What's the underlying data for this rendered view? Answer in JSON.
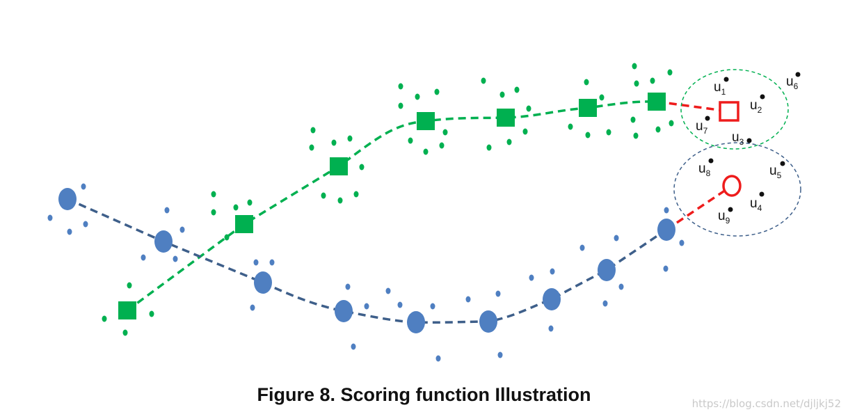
{
  "caption": "Figure 8. Scoring function Illustration",
  "watermark": "https://blog.csdn.net/djljkj52",
  "colors": {
    "green": "#00b050",
    "blue": "#4f7fc1",
    "blue_line": "#3e5f8a",
    "red": "#ee1c1c",
    "text": "#111111"
  },
  "green_trajectory": {
    "marker": "square",
    "line_style": "dashed",
    "candidate_marker": "hollow-square"
  },
  "blue_trajectory": {
    "marker": "circle",
    "line_style": "dashed",
    "candidate_marker": "hollow-circle"
  },
  "candidate_link": {
    "line_style": "dashed"
  },
  "users": [
    {
      "base": "u",
      "sub": "1"
    },
    {
      "base": "u",
      "sub": "2"
    },
    {
      "base": "u",
      "sub": "3"
    },
    {
      "base": "u",
      "sub": "4"
    },
    {
      "base": "u",
      "sub": "5"
    },
    {
      "base": "u",
      "sub": "6"
    },
    {
      "base": "u",
      "sub": "7"
    },
    {
      "base": "u",
      "sub": "8"
    },
    {
      "base": "u",
      "sub": "9"
    }
  ]
}
